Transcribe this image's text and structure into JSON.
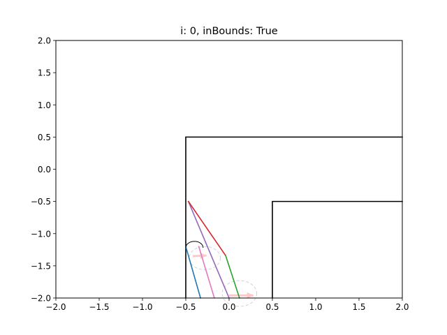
{
  "chart_data": {
    "type": "line",
    "title": "i: 0, inBounds: True",
    "xlabel": "",
    "ylabel": "",
    "xlim": [
      -2.0,
      2.0
    ],
    "ylim": [
      -2.0,
      2.0
    ],
    "xticks": [
      -2.0,
      -1.5,
      -1.0,
      -0.5,
      0.0,
      0.5,
      1.0,
      1.5,
      2.0
    ],
    "xtick_labels": [
      "−2.0",
      "−1.5",
      "−1.0",
      "−0.5",
      "0.0",
      "0.5",
      "1.0",
      "1.5",
      "2.0"
    ],
    "yticks": [
      2.0,
      1.5,
      1.0,
      0.5,
      0.0,
      -0.5,
      -1.0,
      -1.5,
      -2.0
    ],
    "ytick_labels": [
      "2.0",
      "1.5",
      "1.0",
      "0.5",
      "0.0",
      "−0.5",
      "−1.0",
      "−1.5",
      "−2.0"
    ],
    "grid": false,
    "series": [
      {
        "color": "#000000",
        "width": 1.6,
        "points": [
          [
            -0.5,
            -2.0
          ],
          [
            -0.5,
            0.5
          ],
          [
            2.0,
            0.5
          ]
        ]
      },
      {
        "color": "#000000",
        "width": 1.6,
        "points": [
          [
            0.5,
            -2.0
          ],
          [
            0.5,
            -0.5
          ],
          [
            2.0,
            -0.5
          ]
        ]
      },
      {
        "color": "#1f77b4",
        "width": 1.6,
        "points": [
          [
            -0.5,
            -1.2
          ],
          [
            -0.33,
            -2.0
          ]
        ]
      },
      {
        "color": "#e377c2",
        "width": 1.6,
        "points": [
          [
            -0.35,
            -1.2
          ],
          [
            -0.17,
            -2.0
          ]
        ]
      },
      {
        "color": "#9467bd",
        "width": 1.6,
        "points": [
          [
            -0.47,
            -0.5
          ],
          [
            0.0,
            -2.0
          ]
        ]
      },
      {
        "color": "#d62728",
        "width": 1.6,
        "points": [
          [
            -0.47,
            -0.5
          ],
          [
            -0.04,
            -1.34
          ]
        ]
      },
      {
        "color": "#2ca02c",
        "width": 1.6,
        "points": [
          [
            -0.04,
            -1.34
          ],
          [
            0.12,
            -2.0
          ]
        ]
      }
    ],
    "arcs": [
      {
        "color": "#000000",
        "width": 1.0,
        "dashed": false,
        "center": [
          -0.4,
          -1.22
        ],
        "r": 0.1,
        "theta": [
          0,
          180
        ]
      }
    ],
    "faint_circles": [
      {
        "color": "#d0d0d0",
        "center": [
          -0.28,
          -1.38
        ],
        "r": 0.18
      },
      {
        "color": "#d0d0d0",
        "center": [
          0.12,
          -1.93
        ],
        "r": 0.2
      }
    ],
    "faint_arrows": [
      {
        "color": "#ffc8c8",
        "from": [
          -0.42,
          -1.35
        ],
        "to": [
          -0.26,
          -1.34
        ]
      },
      {
        "color": "#ffc8c8",
        "from": [
          0.0,
          -1.96
        ],
        "to": [
          0.28,
          -1.96
        ]
      }
    ]
  }
}
